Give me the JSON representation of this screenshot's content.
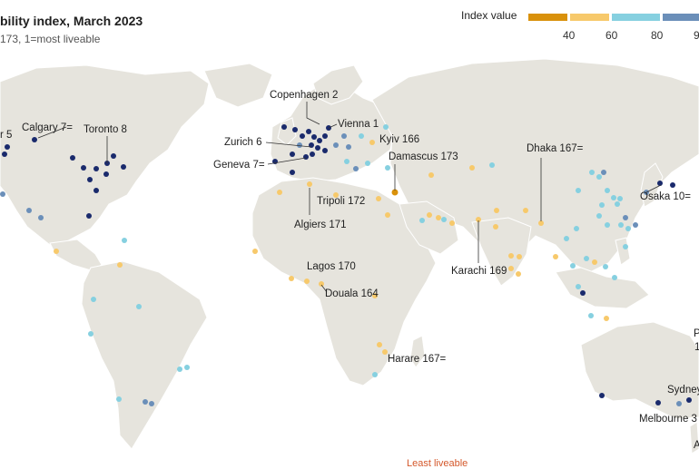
{
  "header": {
    "title": "bility index, March 2023",
    "subtitle": "173, 1=most liveable"
  },
  "legend": {
    "title": "Index value",
    "segments": [
      {
        "color": "#d9910b",
        "label": ""
      },
      {
        "color": "#f7c96b",
        "label": ""
      },
      {
        "color": "#86d0e0",
        "label": ""
      },
      {
        "color": "#6b8fb9",
        "label": ""
      }
    ],
    "ticks": [
      "40",
      "60",
      "80",
      "9"
    ]
  },
  "colors": {
    "land": "#e6e4dd",
    "ocean": "#ffffff",
    "tier_darkblue": "#1a2a6c",
    "tier_midblue": "#6b8fb9",
    "tier_lightblue": "#86d0e0",
    "tier_yellow": "#f7c96b",
    "tier_orange": "#d9910b"
  },
  "labels": {
    "copenhagen": "Copenhagen 2",
    "vienna": "Vienna 1",
    "zurich": "Zurich 6",
    "geneva": "Geneva 7=",
    "kyiv": "Kyiv 166",
    "damascus": "Damascus 173",
    "tripoli": "Tripoli 172",
    "algiers": "Algiers 171",
    "lagos": "Lagos 170",
    "douala": "Douala 164",
    "harare": "Harare 167=",
    "karachi": "Karachi 169",
    "dhaka": "Dhaka 167=",
    "osaka": "Osaka 10=",
    "calgary": "Calgary 7=",
    "toronto": "Toronto 8",
    "vancouver": "r 5",
    "sydney": "Sydney",
    "melbourne": "Melbourne 3",
    "perth_initial": "P",
    "perth_rank": "1",
    "auckland_initial": "A"
  },
  "footer": {
    "text": "Least liveable"
  }
}
